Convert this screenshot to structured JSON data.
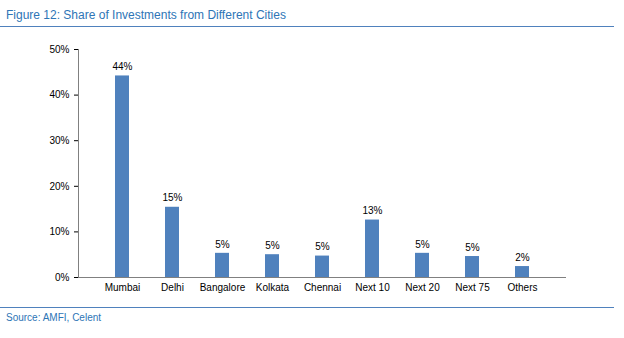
{
  "chart_data": {
    "type": "bar",
    "title": "Figure 12: Share of Investments from Different Cities",
    "source": "Source: AMFI, Celent",
    "categories": [
      "Mumbai",
      "Delhi",
      "Bangalore",
      "Kolkata",
      "Chennai",
      "Next 10",
      "Next 20",
      "Next 75",
      "Others"
    ],
    "values": [
      44.2,
      15.4,
      5.3,
      5.0,
      4.7,
      12.6,
      5.3,
      4.6,
      2.4
    ],
    "value_labels": [
      "44%",
      "15%",
      "5%",
      "5%",
      "5%",
      "13%",
      "5%",
      "5%",
      "2%"
    ],
    "data_labels": true,
    "color": "#4f81bd",
    "ylim": [
      0,
      50
    ],
    "yticks": [
      {
        "value": 0,
        "label": "0%"
      },
      {
        "value": 10,
        "label": "10%"
      },
      {
        "value": 20,
        "label": "20%"
      },
      {
        "value": 30,
        "label": "30%"
      },
      {
        "value": 40,
        "label": "40%"
      },
      {
        "value": 50,
        "label": "50%"
      }
    ],
    "grid": false
  }
}
